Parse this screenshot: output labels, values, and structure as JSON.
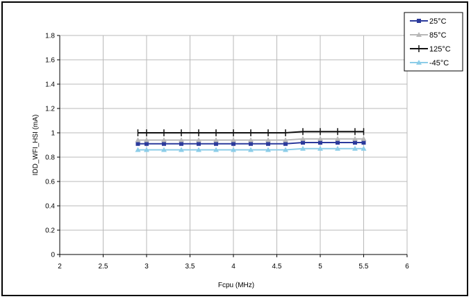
{
  "chart_data": {
    "type": "line",
    "title": "",
    "xlabel": "Fcpu (MHz)",
    "ylabel": "IDD_WFI_HSI (mA)",
    "xlim": [
      2,
      6
    ],
    "ylim": [
      0,
      1.8
    ],
    "x_ticks": [
      "2",
      "2.5",
      "3",
      "3.5",
      "4",
      "4.5",
      "5",
      "5.5",
      "6"
    ],
    "y_ticks": [
      "0",
      "0.2",
      "0.4",
      "0.6",
      "0.8",
      "1",
      "1.2",
      "1.4",
      "1.6",
      "1.8"
    ],
    "grid": true,
    "legend_position": "top-right",
    "x": [
      2.9,
      3.0,
      3.2,
      3.4,
      3.6,
      3.8,
      4.0,
      4.2,
      4.4,
      4.6,
      4.8,
      5.0,
      5.2,
      5.4,
      5.5
    ],
    "series": [
      {
        "name": "25°C",
        "color": "#2b3a9c",
        "marker": "square",
        "values": [
          0.91,
          0.91,
          0.91,
          0.91,
          0.91,
          0.91,
          0.91,
          0.91,
          0.91,
          0.91,
          0.92,
          0.92,
          0.92,
          0.92,
          0.92
        ]
      },
      {
        "name": "85°C",
        "color": "#b8b8b8",
        "marker": "triangle",
        "values": [
          0.94,
          0.94,
          0.94,
          0.94,
          0.94,
          0.94,
          0.94,
          0.94,
          0.94,
          0.94,
          0.95,
          0.95,
          0.95,
          0.95,
          0.95
        ]
      },
      {
        "name": "125°C",
        "color": "#111111",
        "marker": "plus",
        "values": [
          1.0,
          1.0,
          1.0,
          1.0,
          1.0,
          1.0,
          1.0,
          1.0,
          1.0,
          1.0,
          1.01,
          1.01,
          1.01,
          1.01,
          1.01
        ]
      },
      {
        "name": "-45°C",
        "color": "#8ccde8",
        "marker": "triangle",
        "values": [
          0.86,
          0.86,
          0.86,
          0.86,
          0.86,
          0.86,
          0.86,
          0.86,
          0.86,
          0.86,
          0.87,
          0.87,
          0.87,
          0.87,
          0.87
        ]
      }
    ]
  }
}
